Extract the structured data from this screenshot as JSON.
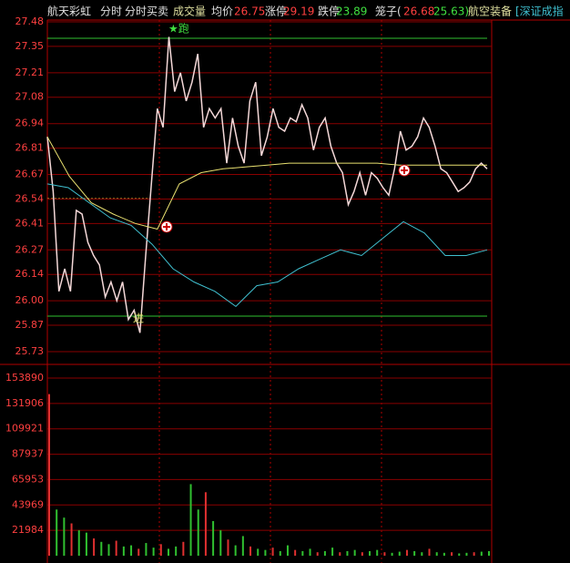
{
  "chart_data": [
    {
      "type": "line",
      "title": "航天彩虹",
      "header_items": [
        {
          "text": "分时",
          "color": "#e0e0e0"
        },
        {
          "text": "分时买卖",
          "color": "#e0e0e0"
        },
        {
          "text": "成交量",
          "color": "#e0e0a0"
        },
        {
          "text": "均价",
          "color": "#e0e0e0"
        },
        {
          "text": "26.75",
          "color": "#ff4040"
        },
        {
          "text": "涨停",
          "color": "#e0e0e0"
        },
        {
          "text": "29.19",
          "color": "#ff4040"
        },
        {
          "text": "跌停",
          "color": "#e0e0e0"
        },
        {
          "text": "23.89",
          "color": "#40e040"
        },
        {
          "text": "笼子(",
          "color": "#e0e0e0"
        },
        {
          "text": "26.68",
          "color": "#ff4040"
        },
        {
          "text": "25.63)",
          "color": "#40e040"
        },
        {
          "text": "航空装备",
          "color": "#e0e0a0"
        },
        {
          "text": "[深证成指",
          "color": "#40c0d0"
        }
      ],
      "annotations": [
        "★跑",
        "进"
      ],
      "ylim": [
        25.73,
        27.48
      ],
      "yticks": [
        27.48,
        27.35,
        27.21,
        27.08,
        26.94,
        26.81,
        26.67,
        26.54,
        26.41,
        26.27,
        26.14,
        {
          "value": 26.0,
          "label": "26.00"
        },
        25.87,
        25.73
      ],
      "grid": true,
      "series": [
        {
          "color": "#f4d8d8",
          "values": [
            26.87,
            26.58,
            26.05,
            26.17,
            26.05,
            26.48,
            26.46,
            26.31,
            26.24,
            26.19,
            26.02,
            26.1,
            26.0,
            26.1,
            25.9,
            25.95,
            25.83,
            26.24,
            26.63,
            27.02,
            26.92,
            27.4,
            27.11,
            27.21,
            27.06,
            27.16,
            27.31,
            26.92,
            27.02,
            26.97,
            27.02,
            26.73,
            26.97,
            26.82,
            26.73,
            27.06,
            27.16,
            26.77,
            26.87,
            27.02,
            26.92,
            26.9,
            26.97,
            26.95,
            27.04,
            26.97,
            26.8,
            26.92,
            26.97,
            26.82,
            26.73,
            26.68,
            26.51,
            26.58,
            26.68,
            26.56,
            26.68,
            26.65,
            26.6,
            26.56,
            26.7,
            26.9,
            26.8,
            26.82,
            26.87,
            26.97,
            26.92,
            26.82,
            26.7,
            26.68,
            26.63,
            26.58,
            26.6,
            26.63,
            26.7,
            26.73,
            26.7
          ]
        },
        {
          "color": "#e8e070",
          "values": [
            26.87,
            26.66,
            26.52,
            26.46,
            26.41,
            26.38,
            26.62,
            26.68,
            26.7,
            26.71,
            26.72,
            26.73,
            26.73,
            26.73,
            26.73,
            26.73,
            26.72,
            26.72,
            26.72,
            26.72,
            26.72
          ]
        },
        {
          "color": "#40c0d0",
          "values": [
            26.62,
            26.6,
            26.52,
            26.44,
            26.4,
            26.3,
            26.17,
            26.1,
            26.05,
            25.97,
            26.08,
            26.1,
            26.17,
            26.22,
            26.27,
            26.24,
            26.33,
            26.42,
            26.36,
            26.24,
            26.24,
            26.27
          ]
        }
      ]
    },
    {
      "type": "bar",
      "ylim": [
        0,
        153890
      ],
      "yticks": [
        153890,
        131906,
        109921,
        87937,
        65953,
        43969,
        21984
      ],
      "grid": true,
      "colors": [
        "#e03030",
        "#30c030"
      ],
      "values": [
        140000,
        40000,
        33000,
        28000,
        22000,
        20000,
        15000,
        12000,
        10000,
        13000,
        8000,
        9000,
        6000,
        11000,
        7000,
        10000,
        6000,
        8000,
        12000,
        62000,
        40000,
        55000,
        30000,
        22000,
        14000,
        9000,
        17000,
        8000,
        6000,
        5000,
        7000,
        4000,
        9000,
        5000,
        4000,
        6000,
        3000,
        4000,
        7000,
        3000,
        4000,
        5000,
        3000,
        4000,
        5000,
        3000,
        2500,
        3500,
        5000,
        4000,
        3000,
        6000,
        3000,
        2500,
        3000,
        2000,
        2500,
        3000,
        3500,
        4000
      ]
    }
  ]
}
